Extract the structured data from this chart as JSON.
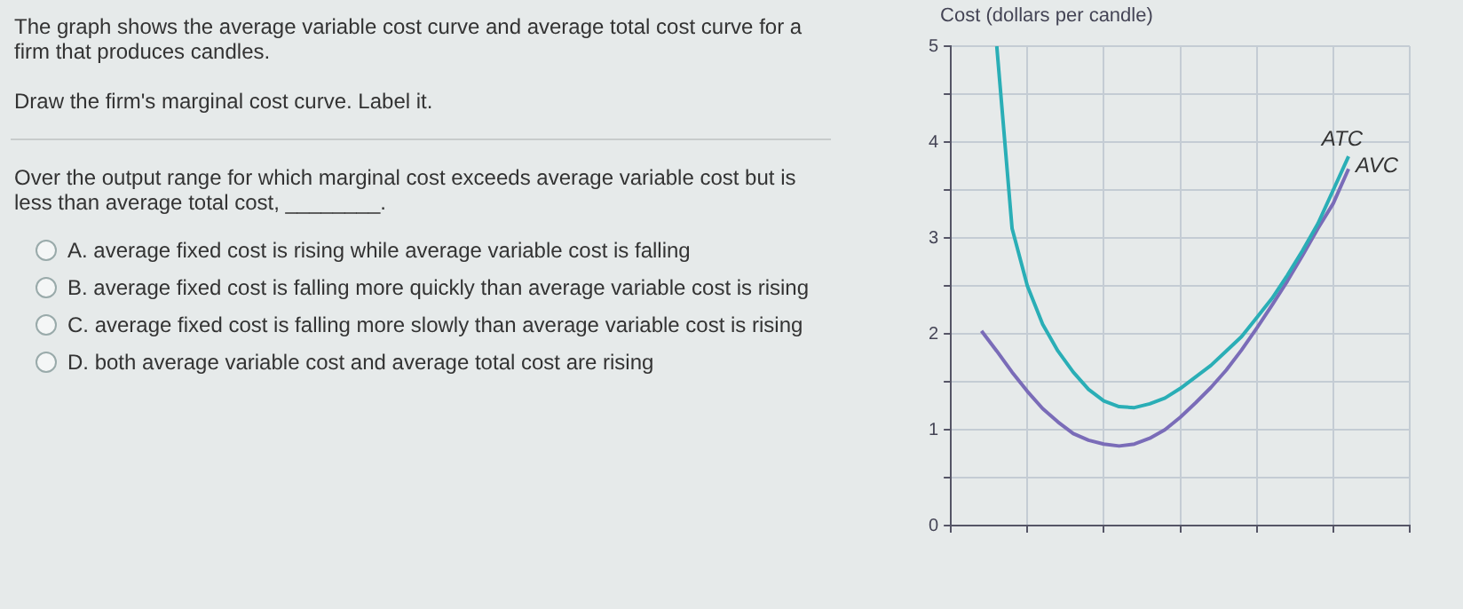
{
  "chart_data": {
    "type": "line",
    "ylabel": "Cost (dollars per candle)",
    "categories": [
      null,
      null,
      null,
      null,
      null,
      null,
      null,
      null,
      null,
      null,
      null,
      null,
      null,
      null,
      null,
      null,
      null,
      null,
      null,
      null,
      null,
      null,
      null,
      null,
      null,
      null,
      null,
      null,
      null,
      null,
      null
    ],
    "ylim": [
      0,
      5
    ],
    "yticks": [
      0,
      {
        "value": 0.5,
        "label": null
      },
      1,
      {
        "value": 1.5,
        "label": null
      },
      2,
      {
        "value": 2.5,
        "label": null
      },
      3,
      {
        "value": 3.5,
        "label": null
      },
      4,
      {
        "value": 4.5,
        "label": null
      },
      5
    ],
    "series": [
      {
        "name": "ATC",
        "color": "#2aaeb6",
        "values": [
          null,
          null,
          null,
          5.0,
          3.1,
          2.5,
          2.1,
          1.82,
          1.6,
          1.42,
          1.3,
          1.24,
          1.23,
          1.27,
          1.33,
          1.43,
          1.55,
          1.67,
          1.82,
          1.97,
          2.17,
          2.37,
          2.61,
          2.87,
          3.15,
          3.5,
          3.85,
          null,
          null,
          null,
          null
        ]
      },
      {
        "name": "AVC",
        "color": "#7a6cb8",
        "values": [
          null,
          null,
          2.03,
          1.82,
          1.6,
          1.4,
          1.22,
          1.08,
          0.96,
          0.89,
          0.85,
          0.83,
          0.85,
          0.91,
          1.0,
          1.13,
          1.28,
          1.44,
          1.62,
          1.83,
          2.06,
          2.3,
          2.55,
          2.82,
          3.1,
          3.36,
          3.72,
          null,
          null,
          null,
          null
        ]
      }
    ],
    "grid": true,
    "legend": false,
    "marker": "none",
    "line_style": "solid",
    "tick_labels": "y",
    "annotations": [
      "The graph shows the average variable cost curve and average total cost curve for a firm that produces candles.",
      "Draw the firm's marginal cost curve. Label it.",
      "Over the output range for which marginal cost exceeds average variable cost but is less than average total cost, ________.",
      "A. average fixed cost is rising while average variable cost is falling",
      "B. average fixed cost is falling more quickly than average variable cost is rising",
      "C. average fixed cost is falling more slowly than average variable cost is rising",
      "D. both average variable cost and average total cost are rising"
    ]
  }
}
